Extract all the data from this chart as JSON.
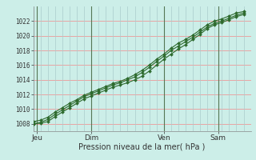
{
  "xlabel": "Pression niveau de la mer( hPa )",
  "background_color": "#cceee8",
  "grid_color_h": "#ee9999",
  "grid_color_v": "#aacccc",
  "line_color": "#2d6a2d",
  "ylim": [
    1007.0,
    1024.0
  ],
  "yticks": [
    1008,
    1010,
    1012,
    1014,
    1016,
    1018,
    1020,
    1022
  ],
  "xlim": [
    0,
    12.0
  ],
  "day_positions": [
    0.2,
    3.2,
    7.2,
    10.2
  ],
  "day_labels": [
    "Jeu",
    "Dim",
    "Ven",
    "Sam"
  ],
  "vline_positions": [
    0.2,
    3.2,
    7.2,
    10.2
  ],
  "series1_x": [
    0.0,
    0.4,
    0.8,
    1.2,
    1.6,
    2.0,
    2.4,
    2.8,
    3.2,
    3.6,
    4.0,
    4.4,
    4.8,
    5.2,
    5.6,
    6.0,
    6.4,
    6.8,
    7.2,
    7.6,
    8.0,
    8.4,
    8.8,
    9.2,
    9.6,
    10.0,
    10.4,
    10.8,
    11.2,
    11.6
  ],
  "series1_y": [
    1008.0,
    1008.1,
    1008.3,
    1009.0,
    1009.6,
    1010.2,
    1010.8,
    1011.4,
    1011.8,
    1012.2,
    1012.6,
    1013.0,
    1013.3,
    1013.6,
    1014.0,
    1014.5,
    1015.2,
    1016.0,
    1016.8,
    1017.5,
    1018.2,
    1018.8,
    1019.5,
    1020.2,
    1021.0,
    1021.5,
    1021.8,
    1022.2,
    1022.6,
    1022.9
  ],
  "series2_x": [
    0.0,
    0.4,
    0.8,
    1.2,
    1.6,
    2.0,
    2.4,
    2.8,
    3.2,
    3.6,
    4.0,
    4.4,
    4.8,
    5.2,
    5.6,
    6.0,
    6.4,
    6.8,
    7.2,
    7.6,
    8.0,
    8.4,
    8.8,
    9.2,
    9.6,
    10.0,
    10.4,
    10.8,
    11.2,
    11.6
  ],
  "series2_y": [
    1008.0,
    1008.2,
    1008.6,
    1009.3,
    1009.9,
    1010.5,
    1011.1,
    1011.7,
    1012.1,
    1012.5,
    1012.9,
    1013.3,
    1013.6,
    1014.0,
    1014.4,
    1015.0,
    1015.7,
    1016.5,
    1017.2,
    1018.0,
    1018.6,
    1019.2,
    1019.8,
    1020.5,
    1021.2,
    1021.7,
    1022.0,
    1022.4,
    1022.8,
    1023.1
  ],
  "series3_x": [
    0.0,
    0.4,
    0.8,
    1.2,
    1.6,
    2.0,
    2.4,
    2.8,
    3.2,
    3.6,
    4.0,
    4.4,
    4.8,
    5.2,
    5.6,
    6.0,
    6.4,
    6.8,
    7.2,
    7.6,
    8.0,
    8.4,
    8.8,
    9.2,
    9.6,
    10.0,
    10.4,
    10.8,
    11.2,
    11.6
  ],
  "series3_y": [
    1008.3,
    1008.5,
    1008.9,
    1009.6,
    1010.2,
    1010.8,
    1011.3,
    1011.9,
    1012.3,
    1012.7,
    1013.1,
    1013.5,
    1013.8,
    1014.2,
    1014.7,
    1015.3,
    1016.0,
    1016.8,
    1017.5,
    1018.3,
    1019.0,
    1019.5,
    1020.1,
    1020.8,
    1021.5,
    1022.0,
    1022.3,
    1022.7,
    1023.1,
    1023.3
  ]
}
